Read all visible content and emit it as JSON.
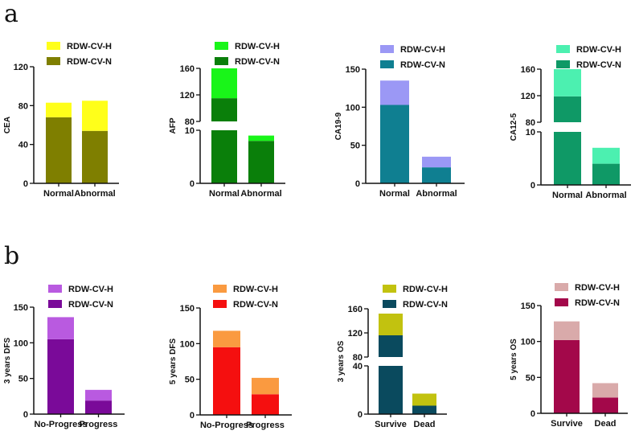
{
  "panels": [
    {
      "label": "a"
    },
    {
      "label": "b"
    }
  ],
  "legend_labels": {
    "high": "RDW-CV-H",
    "normal": "RDW-CV-N"
  },
  "chart_data": [
    {
      "type": "bar",
      "stacked": true,
      "panel": "a",
      "title": "",
      "xlabel": "",
      "ylabel": "CEA",
      "categories": [
        "Normal",
        "Abnormal"
      ],
      "series": [
        {
          "name": "RDW-CV-N",
          "values": [
            68,
            54
          ],
          "color": "#7f7f00"
        },
        {
          "name": "RDW-CV-H",
          "values": [
            15,
            31
          ],
          "color": "#ffff1a"
        }
      ],
      "ylim": [
        0,
        120
      ],
      "yticks": [
        0,
        40,
        80,
        120
      ],
      "broken_axis": null,
      "legend": "top"
    },
    {
      "type": "bar",
      "stacked": true,
      "panel": "a",
      "title": "",
      "xlabel": "",
      "ylabel": "AFP",
      "categories": [
        "Normal",
        "Abnormal"
      ],
      "series": [
        {
          "name": "RDW-CV-N",
          "values": [
            115,
            8
          ],
          "color": "#0a7f0a"
        },
        {
          "name": "RDW-CV-H",
          "values": [
            45,
            1
          ],
          "color": "#19f519"
        }
      ],
      "ylim": [
        0,
        160
      ],
      "yticks": [
        0,
        10,
        80,
        120,
        160
      ],
      "broken_axis": {
        "lower": [
          0,
          10
        ],
        "upper": [
          80,
          160
        ]
      },
      "legend": "top"
    },
    {
      "type": "bar",
      "stacked": true,
      "panel": "a",
      "title": "",
      "xlabel": "",
      "ylabel": "CA19-9",
      "categories": [
        "Normal",
        "Abnormal"
      ],
      "series": [
        {
          "name": "RDW-CV-N",
          "values": [
            103,
            21
          ],
          "color": "#0f7f91"
        },
        {
          "name": "RDW-CV-H",
          "values": [
            32,
            14
          ],
          "color": "#9b98f5"
        }
      ],
      "ylim": [
        0,
        150
      ],
      "yticks": [
        0,
        50,
        100,
        150
      ],
      "broken_axis": null,
      "legend": "top"
    },
    {
      "type": "bar",
      "stacked": true,
      "panel": "a",
      "title": "",
      "xlabel": "",
      "ylabel": "CA12-5",
      "categories": [
        "Normal",
        "Abnormal"
      ],
      "series": [
        {
          "name": "RDW-CV-N",
          "values": [
            119,
            4
          ],
          "color": "#0f9966"
        },
        {
          "name": "RDW-CV-H",
          "values": [
            41,
            3
          ],
          "color": "#4cf0b0"
        }
      ],
      "ylim": [
        0,
        160
      ],
      "yticks": [
        0,
        10,
        80,
        120,
        160
      ],
      "broken_axis": {
        "lower": [
          0,
          10
        ],
        "upper": [
          80,
          160
        ]
      },
      "legend": "top"
    },
    {
      "type": "bar",
      "stacked": true,
      "panel": "b",
      "title": "",
      "xlabel": "",
      "ylabel": "3 years DFS",
      "categories": [
        "No-Progress",
        "Progress"
      ],
      "series": [
        {
          "name": "RDW-CV-N",
          "values": [
            105,
            19
          ],
          "color": "#7a0a99"
        },
        {
          "name": "RDW-CV-H",
          "values": [
            31,
            15
          ],
          "color": "#b95ae0"
        }
      ],
      "ylim": [
        0,
        150
      ],
      "yticks": [
        0,
        50,
        100,
        150
      ],
      "broken_axis": null,
      "legend": "top"
    },
    {
      "type": "bar",
      "stacked": true,
      "panel": "b",
      "title": "",
      "xlabel": "",
      "ylabel": "5 years DFS",
      "categories": [
        "No-Progress",
        "Progress"
      ],
      "series": [
        {
          "name": "RDW-CV-N",
          "values": [
            95,
            29
          ],
          "color": "#f50f0f"
        },
        {
          "name": "RDW-CV-H",
          "values": [
            23,
            23
          ],
          "color": "#fa9a40"
        }
      ],
      "ylim": [
        0,
        150
      ],
      "yticks": [
        0,
        50,
        100,
        150
      ],
      "broken_axis": null,
      "legend": "top"
    },
    {
      "type": "bar",
      "stacked": true,
      "panel": "b",
      "title": "",
      "xlabel": "",
      "ylabel": "3 years OS",
      "categories": [
        "Survive",
        "Dead"
      ],
      "series": [
        {
          "name": "RDW-CV-N",
          "values": [
            116,
            7
          ],
          "color": "#0a4a5e"
        },
        {
          "name": "RDW-CV-H",
          "values": [
            36,
            10
          ],
          "color": "#c2c20f"
        }
      ],
      "ylim": [
        0,
        160
      ],
      "yticks": [
        0,
        40,
        80,
        120,
        160
      ],
      "broken_axis": {
        "lower": [
          0,
          40
        ],
        "upper": [
          80,
          160
        ]
      },
      "legend": "top"
    },
    {
      "type": "bar",
      "stacked": true,
      "panel": "b",
      "title": "",
      "xlabel": "",
      "ylabel": "5 years OS",
      "categories": [
        "Survive",
        "Dead"
      ],
      "series": [
        {
          "name": "RDW-CV-N",
          "values": [
            102,
            22
          ],
          "color": "#a3084a"
        },
        {
          "name": "RDW-CV-H",
          "values": [
            26,
            20
          ],
          "color": "#d9aaaa"
        }
      ],
      "ylim": [
        0,
        150
      ],
      "yticks": [
        0,
        50,
        100,
        150
      ],
      "broken_axis": null,
      "legend": "top"
    }
  ]
}
